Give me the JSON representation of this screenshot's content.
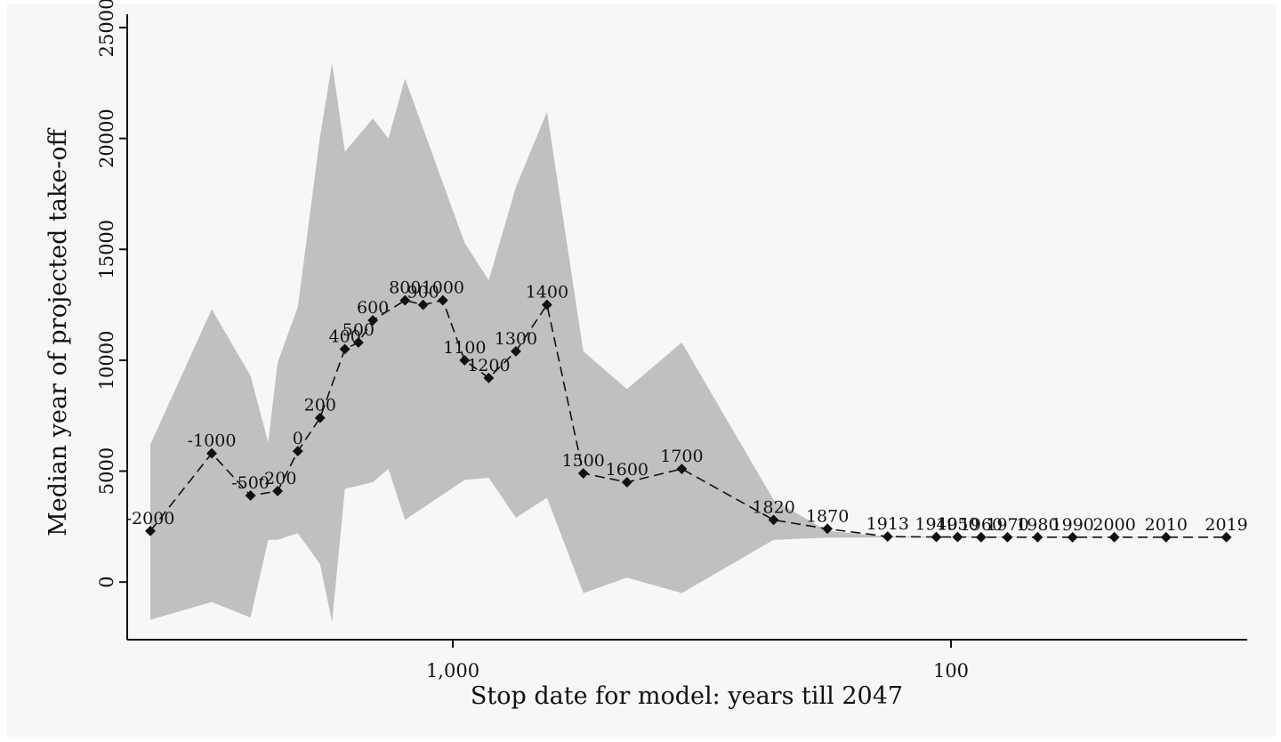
{
  "chart_data": {
    "type": "area",
    "title": "",
    "xlabel": "Stop date for model: years till 2047",
    "ylabel": "Median year of projected take-off",
    "x_scale": "log",
    "x_reversed": true,
    "x_ticks": [
      {
        "value": 1000,
        "label": "1,000"
      },
      {
        "value": 100,
        "label": "100"
      }
    ],
    "y_ticks": [
      {
        "value": 0,
        "label": "0"
      },
      {
        "value": 5000,
        "label": "5000"
      },
      {
        "value": 10000,
        "label": "10000"
      },
      {
        "value": 15000,
        "label": "15000"
      },
      {
        "value": 20000,
        "label": "20000"
      },
      {
        "value": 25000,
        "label": "25000"
      }
    ],
    "ylim": [
      -2600,
      25600
    ],
    "grid": false,
    "legend": "none",
    "colors": {
      "band": "#c0c0c0",
      "line": "#111111",
      "background": "#f7f7f7"
    },
    "band_upper": [
      {
        "x": 4047,
        "y": 6200
      },
      {
        "x": 3047,
        "y": 12300
      },
      {
        "x": 2547,
        "y": 9300
      },
      {
        "x": 2347,
        "y": 6300
      },
      {
        "x": 2247,
        "y": 9900
      },
      {
        "x": 2047,
        "y": 12400
      },
      {
        "x": 1847,
        "y": 20100
      },
      {
        "x": 1747,
        "y": 23400
      },
      {
        "x": 1647,
        "y": 19400
      },
      {
        "x": 1447,
        "y": 20900
      },
      {
        "x": 1347,
        "y": 20000
      },
      {
        "x": 1247,
        "y": 22700
      },
      {
        "x": 947,
        "y": 15300
      },
      {
        "x": 847,
        "y": 13600
      },
      {
        "x": 747,
        "y": 17800
      },
      {
        "x": 647,
        "y": 21200
      },
      {
        "x": 547,
        "y": 10400
      },
      {
        "x": 447,
        "y": 8700
      },
      {
        "x": 347,
        "y": 10800
      },
      {
        "x": 227,
        "y": 3700
      },
      {
        "x": 177,
        "y": 2300
      },
      {
        "x": 134,
        "y": 2050
      },
      {
        "x": 27,
        "y": 2030
      }
    ],
    "band_lower": [
      {
        "x": 4047,
        "y": -1700
      },
      {
        "x": 3047,
        "y": -900
      },
      {
        "x": 2547,
        "y": -1600
      },
      {
        "x": 2347,
        "y": 1900
      },
      {
        "x": 2247,
        "y": 1900
      },
      {
        "x": 2047,
        "y": 2200
      },
      {
        "x": 1847,
        "y": 800
      },
      {
        "x": 1747,
        "y": -1800
      },
      {
        "x": 1647,
        "y": 4200
      },
      {
        "x": 1447,
        "y": 4500
      },
      {
        "x": 1347,
        "y": 5100
      },
      {
        "x": 1247,
        "y": 2800
      },
      {
        "x": 947,
        "y": 4600
      },
      {
        "x": 847,
        "y": 4700
      },
      {
        "x": 747,
        "y": 2900
      },
      {
        "x": 647,
        "y": 3800
      },
      {
        "x": 547,
        "y": -500
      },
      {
        "x": 447,
        "y": 200
      },
      {
        "x": 347,
        "y": -500
      },
      {
        "x": 227,
        "y": 1900
      },
      {
        "x": 177,
        "y": 2000
      },
      {
        "x": 134,
        "y": 2010
      },
      {
        "x": 27,
        "y": 2020
      }
    ],
    "series": [
      {
        "points": [
          {
            "label": "-2000",
            "x": 4047,
            "y": 2300
          },
          {
            "label": "-1000",
            "x": 3047,
            "y": 5800
          },
          {
            "label": "-500",
            "x": 2547,
            "y": 3900
          },
          {
            "label": "-200",
            "x": 2247,
            "y": 4100
          },
          {
            "label": "0",
            "x": 2047,
            "y": 5900
          },
          {
            "label": "200",
            "x": 1847,
            "y": 7400
          },
          {
            "label": "400",
            "x": 1647,
            "y": 10500
          },
          {
            "label": "500",
            "x": 1547,
            "y": 10800
          },
          {
            "label": "600",
            "x": 1447,
            "y": 11800
          },
          {
            "label": "800",
            "x": 1247,
            "y": 12700
          },
          {
            "label": "900",
            "x": 1147,
            "y": 12500
          },
          {
            "label": "1000",
            "x": 1047,
            "y": 12700
          },
          {
            "label": "1100",
            "x": 947,
            "y": 10000
          },
          {
            "label": "1200",
            "x": 847,
            "y": 9200
          },
          {
            "label": "1300",
            "x": 747,
            "y": 10400
          },
          {
            "label": "1400",
            "x": 647,
            "y": 12500
          },
          {
            "label": "1500",
            "x": 547,
            "y": 4900
          },
          {
            "label": "1600",
            "x": 447,
            "y": 4500
          },
          {
            "label": "1700",
            "x": 347,
            "y": 5100
          },
          {
            "label": "1820",
            "x": 227,
            "y": 2800
          },
          {
            "label": "1870",
            "x": 177,
            "y": 2400
          },
          {
            "label": "1913",
            "x": 134,
            "y": 2050
          },
          {
            "label": "1940",
            "x": 107,
            "y": 2030
          },
          {
            "label": "1950",
            "x": 97,
            "y": 2030
          },
          {
            "label": "1960",
            "x": 87,
            "y": 2020
          },
          {
            "label": "1970",
            "x": 77,
            "y": 2020
          },
          {
            "label": "1980",
            "x": 67,
            "y": 2020
          },
          {
            "label": "1990",
            "x": 57,
            "y": 2020
          },
          {
            "label": "2000",
            "x": 47,
            "y": 2020
          },
          {
            "label": "2010",
            "x": 37,
            "y": 2020
          },
          {
            "label": "2019",
            "x": 28,
            "y": 2020
          }
        ]
      }
    ]
  }
}
